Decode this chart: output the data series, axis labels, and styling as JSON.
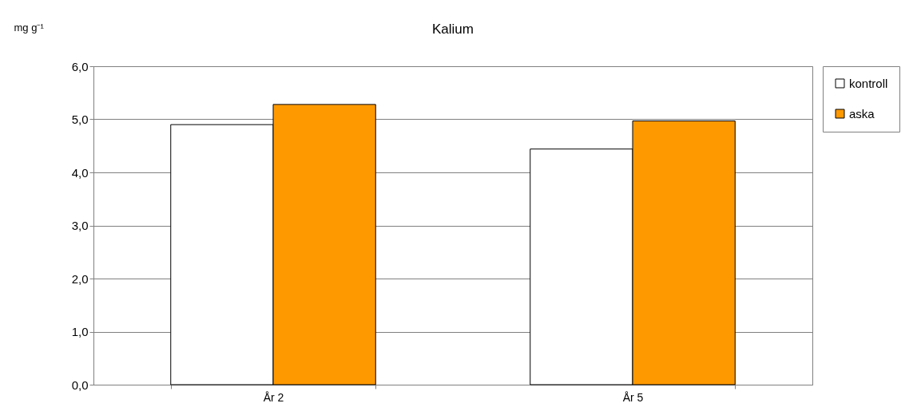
{
  "chart_data": {
    "type": "bar",
    "title": "Kalium",
    "ylabel": "mg g⁻¹",
    "categories": [
      "År 2",
      "År 5"
    ],
    "series": [
      {
        "name": "kontroll",
        "color": "#ffffff",
        "values": [
          4.9,
          4.44
        ]
      },
      {
        "name": "aska",
        "color": "#ff9900",
        "values": [
          5.28,
          4.97
        ]
      }
    ],
    "ylim": [
      0,
      6
    ],
    "yticks": [
      {
        "value": 0,
        "label": "0,0"
      },
      {
        "value": 1,
        "label": "1,0"
      },
      {
        "value": 2,
        "label": "2,0"
      },
      {
        "value": 3,
        "label": "3,0"
      },
      {
        "value": 4,
        "label": "4,0"
      },
      {
        "value": 5,
        "label": "5,0"
      },
      {
        "value": 6,
        "label": "6,0"
      }
    ],
    "grid": "y",
    "legend": "right"
  }
}
